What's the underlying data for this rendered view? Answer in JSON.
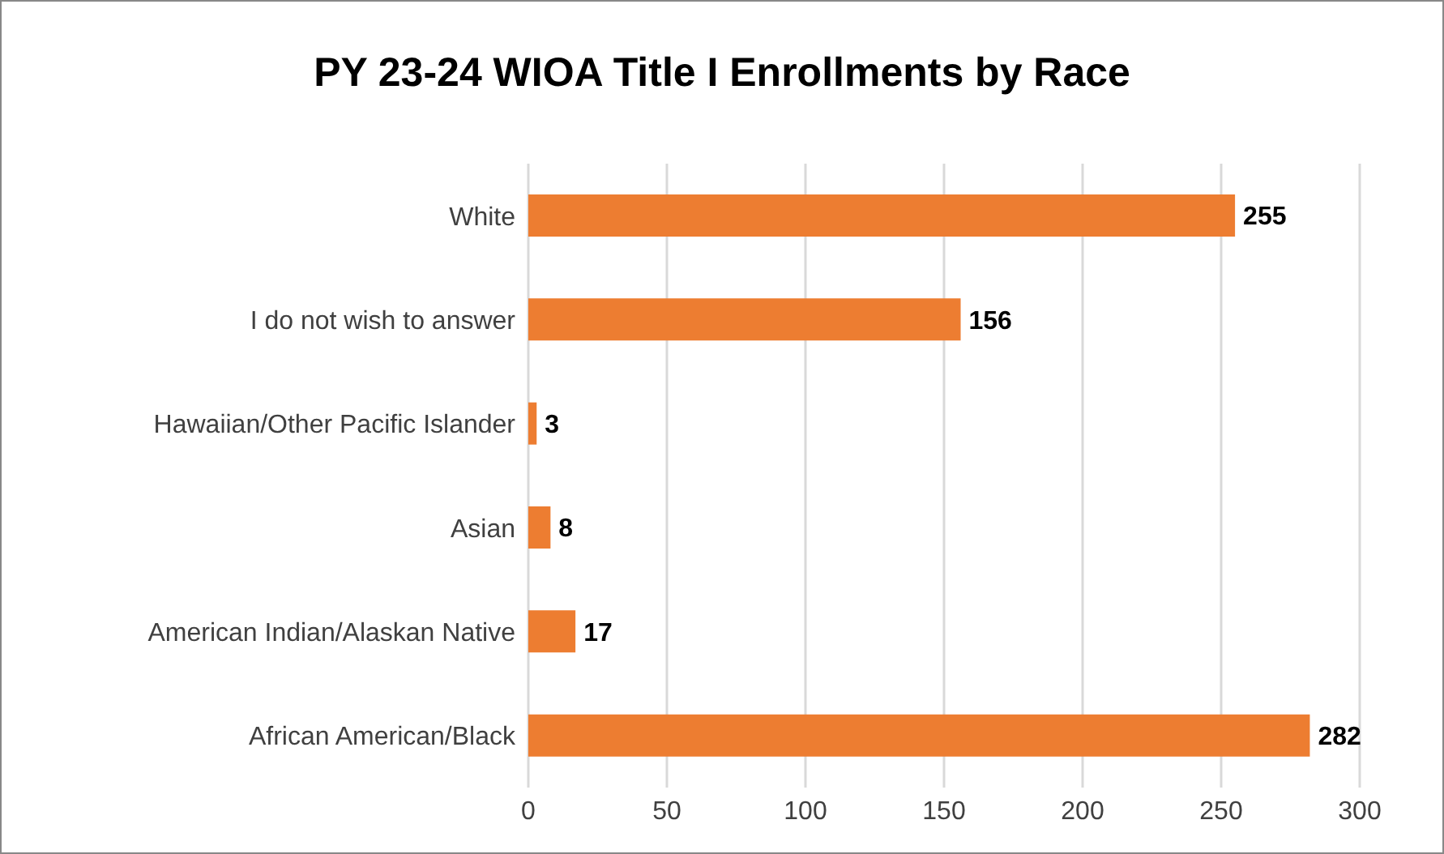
{
  "chart_data": {
    "type": "bar",
    "orientation": "horizontal",
    "title": "PY 23-24 WIOA Title I Enrollments by Race",
    "categories": [
      "White",
      "I do not wish to answer",
      "Hawaiian/Other Pacific Islander",
      "Asian",
      "American Indian/Alaskan Native",
      "African American/Black"
    ],
    "values": [
      255,
      156,
      3,
      8,
      17,
      282
    ],
    "color": "#ed7d31",
    "xlim": [
      0,
      300
    ],
    "xticks": [
      0,
      50,
      100,
      150,
      200,
      250,
      300
    ],
    "grid": "x",
    "data_labels": true
  }
}
